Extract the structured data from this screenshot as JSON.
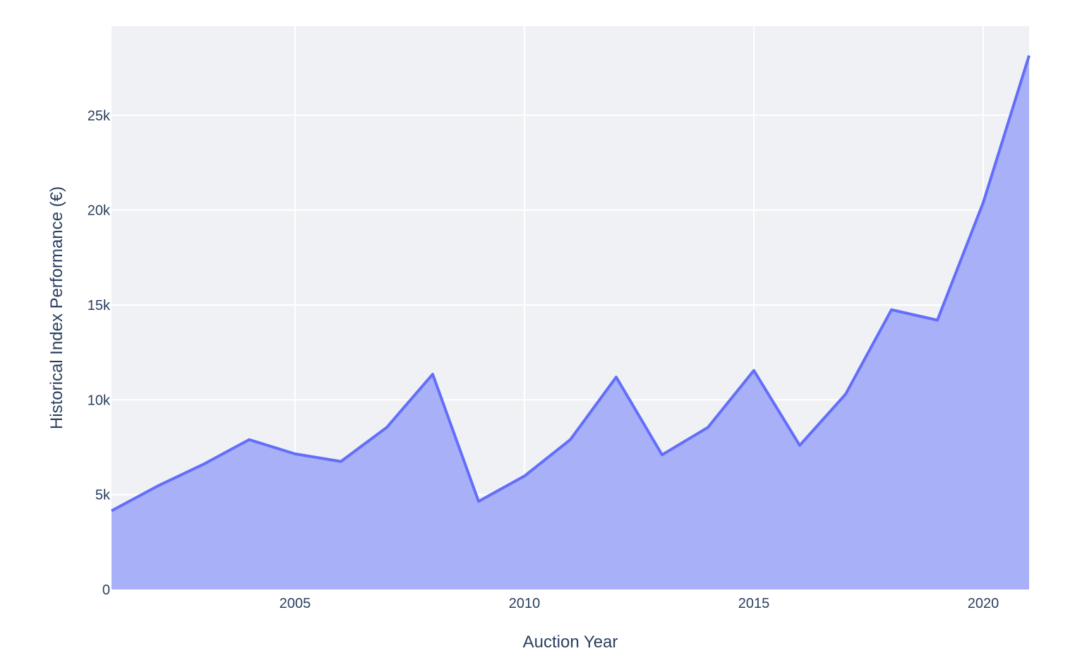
{
  "chart_data": {
    "type": "area",
    "title": "",
    "xlabel": "Auction Year",
    "ylabel": "Historical Index Performance (€)",
    "x": [
      2001,
      2002,
      2003,
      2004,
      2005,
      2006,
      2007,
      2008,
      2009,
      2010,
      2011,
      2012,
      2013,
      2014,
      2015,
      2016,
      2017,
      2018,
      2019,
      2020,
      2021
    ],
    "series": [
      {
        "values": [
          4150,
          5450,
          6600,
          7900,
          7150,
          6750,
          8550,
          11350,
          4650,
          5980,
          7900,
          11200,
          7100,
          8550,
          11550,
          7600,
          10300,
          14750,
          14200,
          20400,
          28150
        ]
      }
    ],
    "xlim": [
      2001,
      2021
    ],
    "ylim": [
      0,
      29700
    ],
    "x_ticks": [
      {
        "value": 2005,
        "label": "2005"
      },
      {
        "value": 2010,
        "label": "2010"
      },
      {
        "value": 2015,
        "label": "2015"
      },
      {
        "value": 2020,
        "label": "2020"
      }
    ],
    "y_ticks": [
      {
        "value": 0,
        "label": "0"
      },
      {
        "value": 5000,
        "label": "5k"
      },
      {
        "value": 10000,
        "label": "10k"
      },
      {
        "value": 15000,
        "label": "15k"
      },
      {
        "value": 20000,
        "label": "20k"
      },
      {
        "value": 25000,
        "label": "25k"
      }
    ],
    "grid": true,
    "legend": "none",
    "colors": {
      "plot_background": "#eff1f5",
      "grid": "#ffffff",
      "line": "#636efa",
      "fill": "#a8b0f8",
      "text": "#2a3f5f"
    }
  }
}
